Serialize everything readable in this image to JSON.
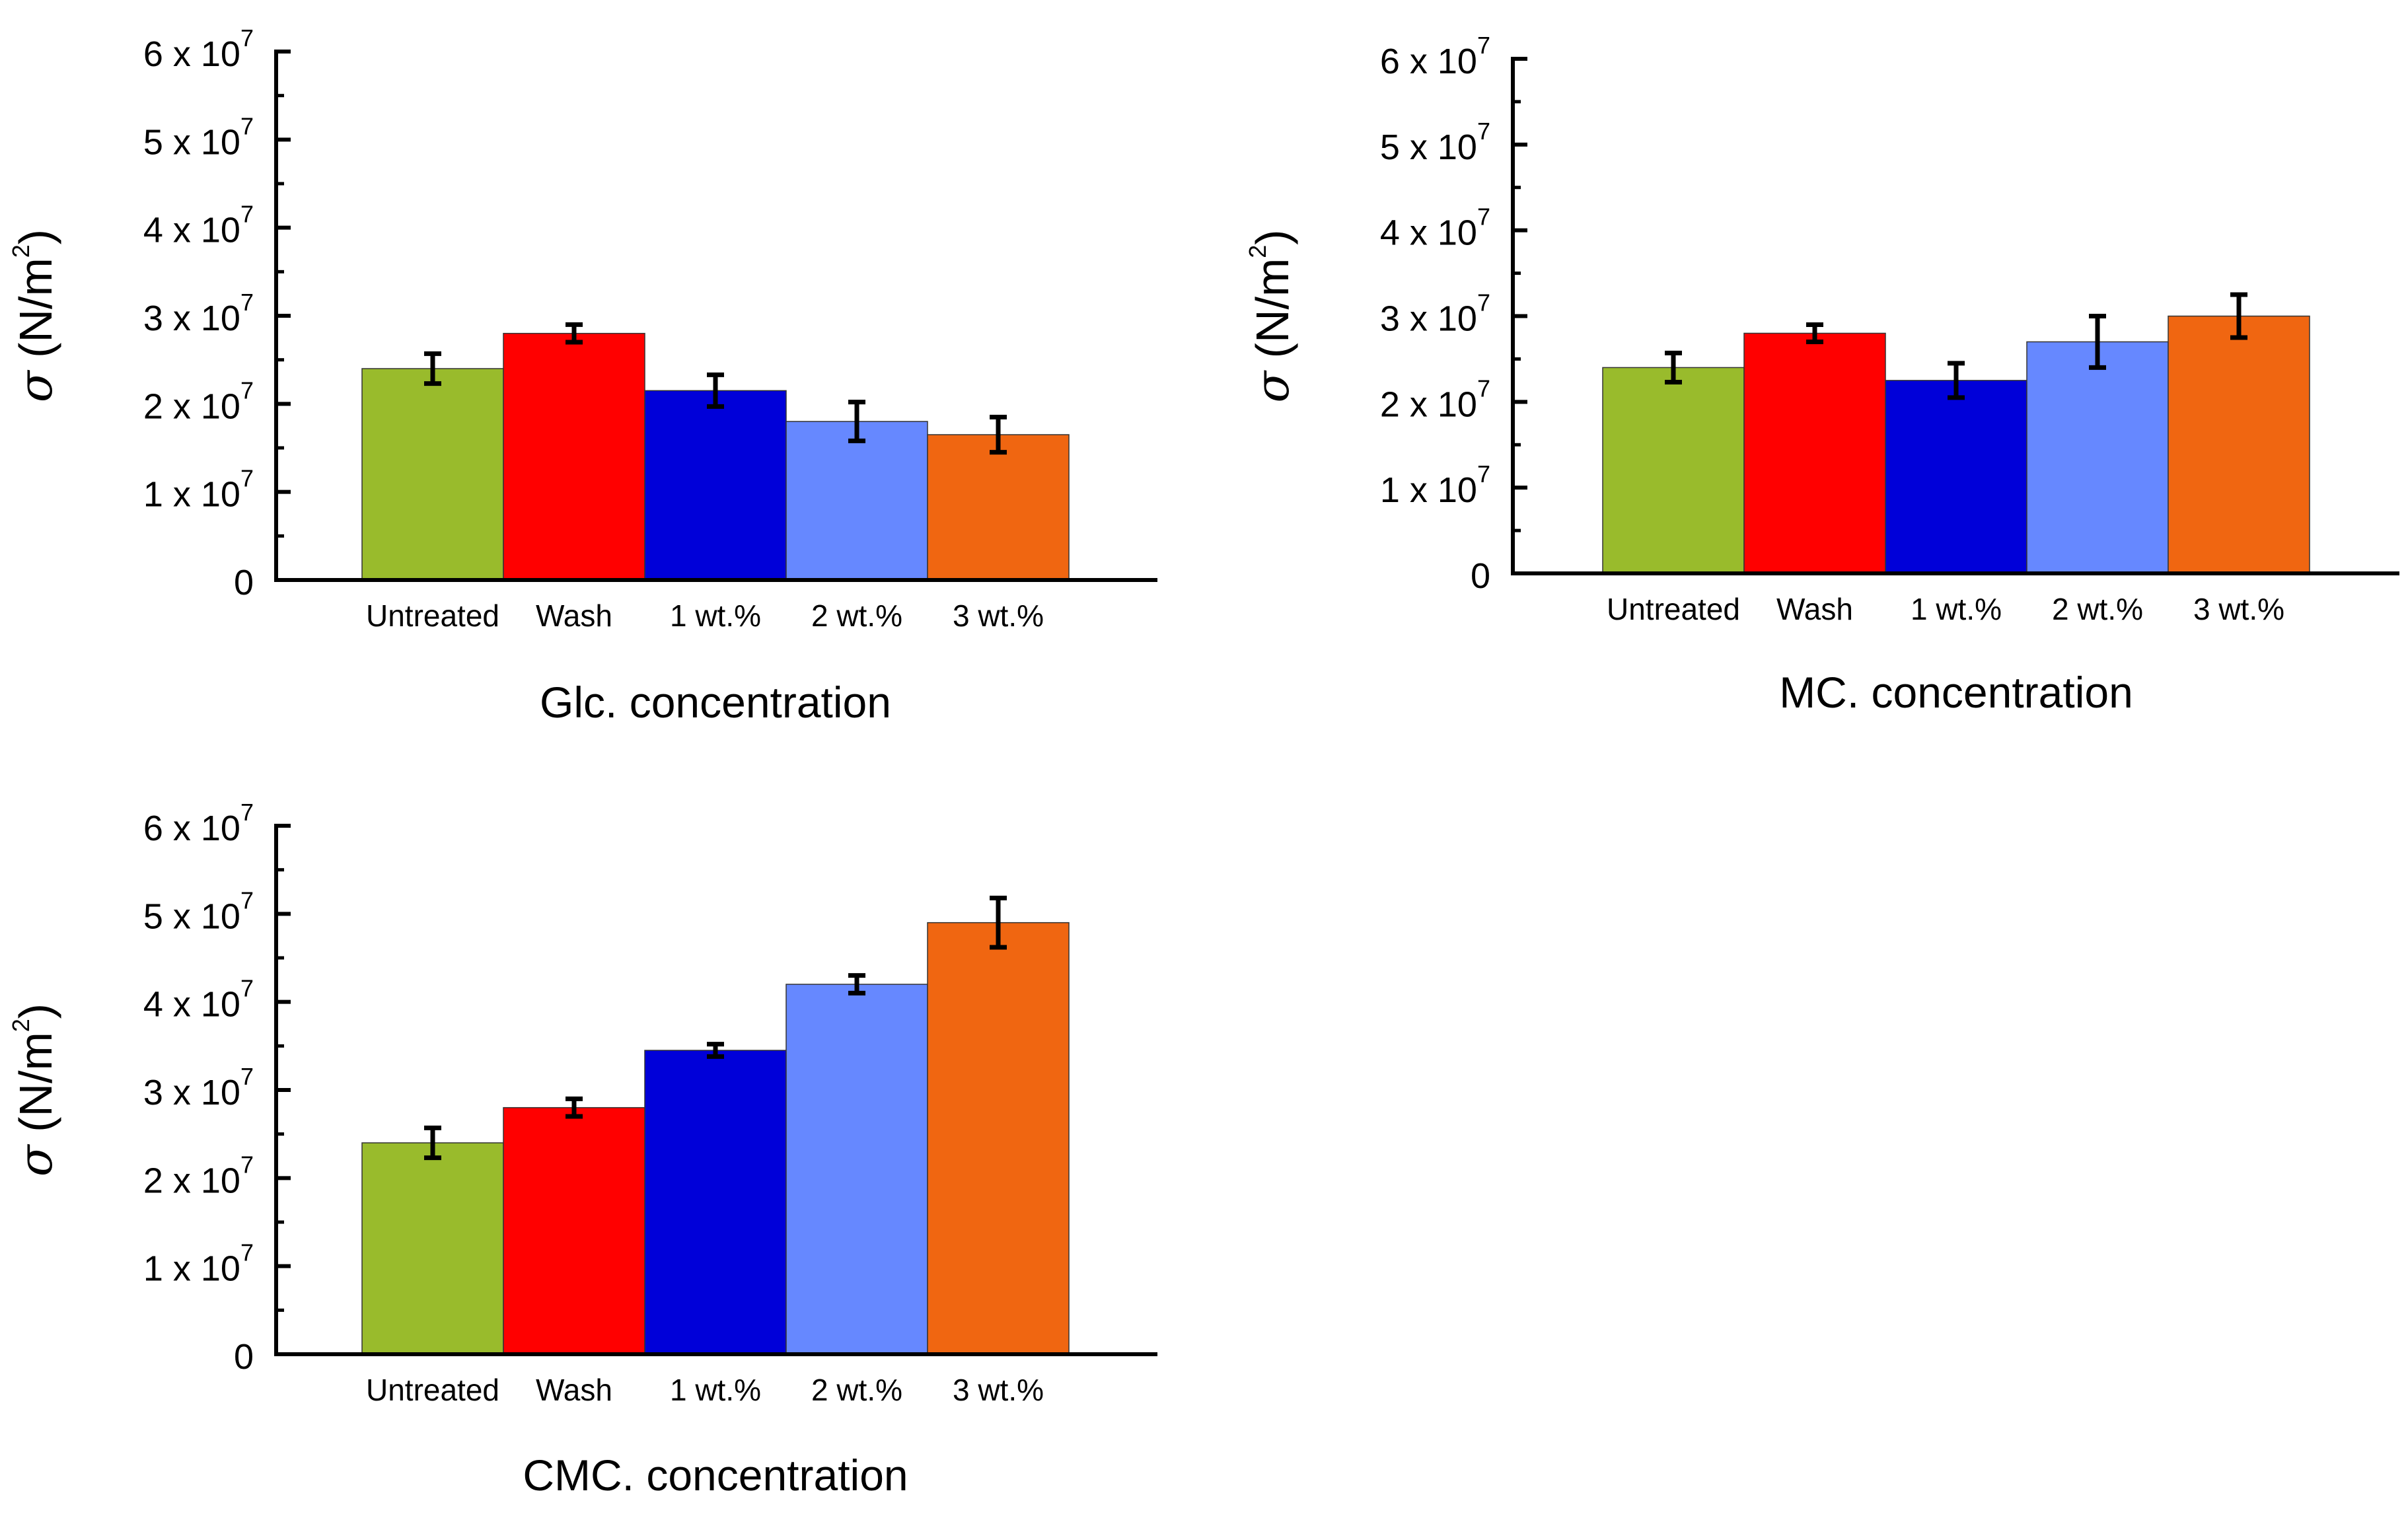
{
  "colors": {
    "untreated": "#99bb2c",
    "wash": "#ff0000",
    "wt1": "#0000d9",
    "wt2": "#6688ff",
    "wt3": "#f06611",
    "axis": "#000000"
  },
  "chart_data": [
    {
      "type": "bar",
      "categories": [
        "Untreated",
        "Wash",
        "1 wt.%",
        "2 wt.%",
        "3 wt.%"
      ],
      "values": [
        24000000.0,
        28000000.0,
        21500000.0,
        18000000.0,
        16500000.0
      ],
      "errors": [
        1700000.0,
        1000000.0,
        1800000.0,
        2200000.0,
        2000000.0
      ],
      "xlabel": "Glc. concentration",
      "ylabel": {
        "symbol": "σ",
        "text": "(N/m",
        "sup": "2",
        "close": ")"
      },
      "ylim": [
        0,
        60000000.0
      ],
      "yticks": [
        {
          "base": "0",
          "exp": ""
        },
        {
          "base": "1 x 10",
          "exp": "7"
        },
        {
          "base": "2 x 10",
          "exp": "7"
        },
        {
          "base": "3 x 10",
          "exp": "7"
        },
        {
          "base": "4 x 10",
          "exp": "7"
        },
        {
          "base": "5 x 10",
          "exp": "7"
        },
        {
          "base": "6 x 10",
          "exp": "7"
        }
      ]
    },
    {
      "type": "bar",
      "categories": [
        "Untreated",
        "Wash",
        "1 wt.%",
        "2 wt.%",
        "3 wt.%"
      ],
      "values": [
        24000000.0,
        28000000.0,
        22500000.0,
        27000000.0,
        30000000.0
      ],
      "errors": [
        1700000.0,
        1000000.0,
        2000000.0,
        3000000.0,
        2500000.0
      ],
      "xlabel": "MC. concentration",
      "ylabel": {
        "symbol": "σ",
        "text": "(N/m",
        "sup": "2",
        "close": ")"
      },
      "ylim": [
        0,
        60000000.0
      ],
      "yticks": [
        {
          "base": "0",
          "exp": ""
        },
        {
          "base": "1 x 10",
          "exp": "7"
        },
        {
          "base": "2 x 10",
          "exp": "7"
        },
        {
          "base": "3 x 10",
          "exp": "7"
        },
        {
          "base": "4 x 10",
          "exp": "7"
        },
        {
          "base": "5 x 10",
          "exp": "7"
        },
        {
          "base": "6 x 10",
          "exp": "7"
        }
      ]
    },
    {
      "type": "bar",
      "categories": [
        "Untreated",
        "Wash",
        "1 wt.%",
        "2 wt.%",
        "3 wt.%"
      ],
      "values": [
        24000000.0,
        28000000.0,
        34500000.0,
        42000000.0,
        49000000.0
      ],
      "errors": [
        1700000.0,
        1000000.0,
        700000.0,
        1000000.0,
        2800000.0
      ],
      "xlabel": "CMC. concentration",
      "ylabel": {
        "symbol": "σ",
        "text": "(N/m",
        "sup": "2",
        "close": ")"
      },
      "ylim": [
        0,
        60000000.0
      ],
      "yticks": [
        {
          "base": "0",
          "exp": ""
        },
        {
          "base": "1 x 10",
          "exp": "7"
        },
        {
          "base": "2 x 10",
          "exp": "7"
        },
        {
          "base": "3 x 10",
          "exp": "7"
        },
        {
          "base": "4 x 10",
          "exp": "7"
        },
        {
          "base": "5 x 10",
          "exp": "7"
        },
        {
          "base": "6 x 10",
          "exp": "7"
        }
      ]
    }
  ]
}
